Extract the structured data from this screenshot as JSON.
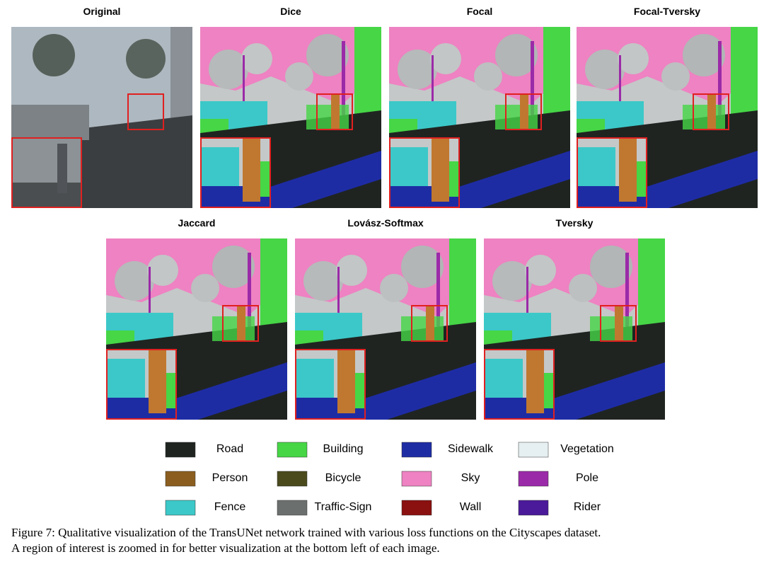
{
  "panels": [
    {
      "title": "Original"
    },
    {
      "title": "Dice"
    },
    {
      "title": "Focal"
    },
    {
      "title": "Focal-Tversky"
    },
    {
      "title": "Jaccard"
    },
    {
      "title": "Lovász-Softmax"
    },
    {
      "title": "Tversky"
    }
  ],
  "legend": [
    {
      "label": "Road",
      "color": "#1f2421"
    },
    {
      "label": "Building",
      "color": "#46d646"
    },
    {
      "label": "Sidewalk",
      "color": "#1e2ca4"
    },
    {
      "label": "Vegetation",
      "color": "#e6eff1"
    },
    {
      "label": "Person",
      "color": "#8b5e1f"
    },
    {
      "label": "Bicycle",
      "color": "#4a4a1c"
    },
    {
      "label": "Sky",
      "color": "#ee82c2"
    },
    {
      "label": "Pole",
      "color": "#9b2aa8"
    },
    {
      "label": "Fence",
      "color": "#3cc8c8"
    },
    {
      "label": "Traffic-Sign",
      "color": "#6b706e"
    },
    {
      "label": "Wall",
      "color": "#8b1010"
    },
    {
      "label": "Rider",
      "color": "#4a1a9a"
    }
  ],
  "caption": [
    "Figure 7: Qualitative visualization of the TransUNet network trained with various loss functions on the Cityscapes dataset.",
    "A region of interest is zoomed in for better visualization at the bottom left of each image."
  ]
}
